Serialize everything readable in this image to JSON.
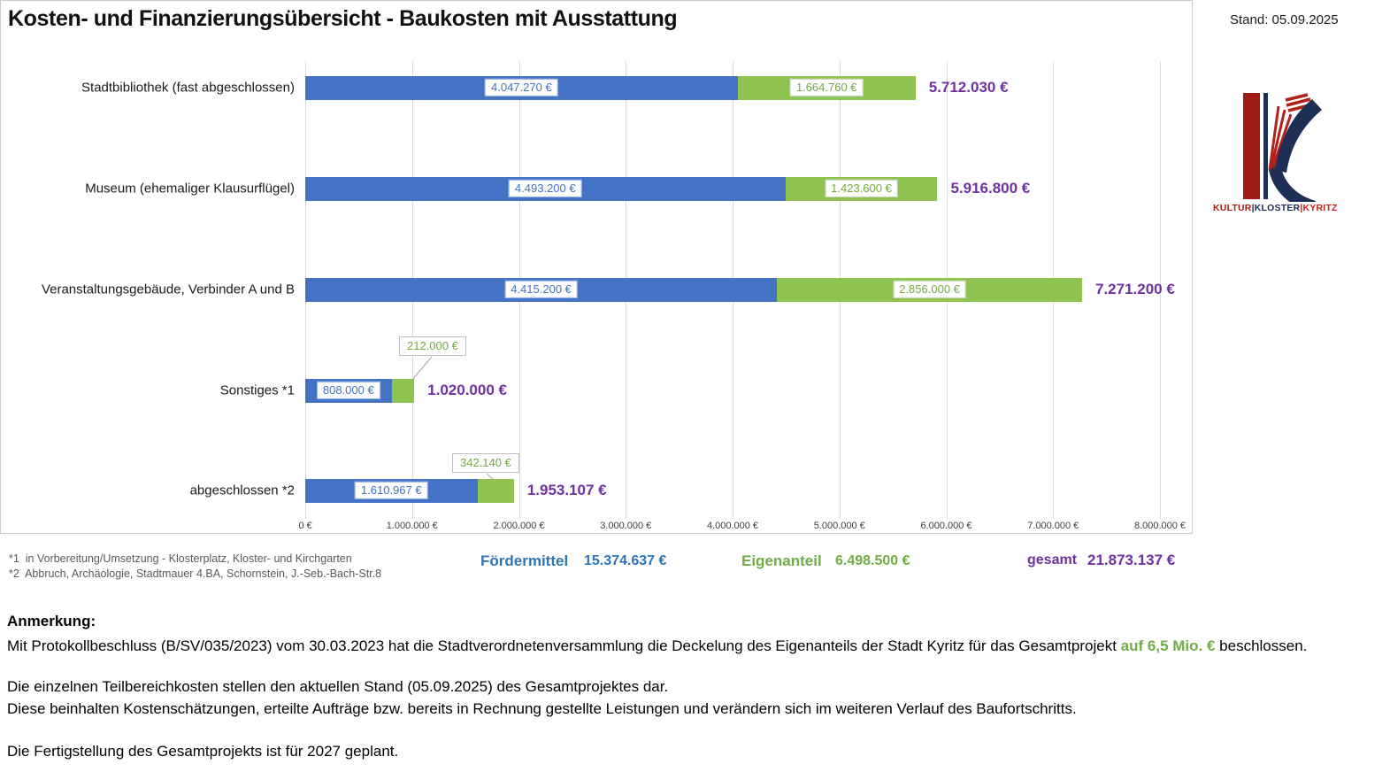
{
  "meta": {
    "stand": "Stand: 05.09.2025"
  },
  "title": "Kosten- und Finanzierungsübersicht - Baukosten mit Ausstattung",
  "chart_data": {
    "type": "bar",
    "orientation": "horizontal",
    "stacked": true,
    "grid": true,
    "categories": [
      "Stadtbibliothek (fast abgeschlossen)",
      "Museum (ehemaliger Klausurflügel)",
      "Veranstaltungsgebäude, Verbinder A und B",
      "Sonstiges *1",
      "abgeschlossen *2"
    ],
    "series": [
      {
        "name": "Fördermittel",
        "color": "#4472c4",
        "values": [
          4047270,
          4493200,
          4415200,
          808000,
          1610967
        ],
        "labels": [
          "4.047.270 €",
          "4.493.200 €",
          "4.415.200 €",
          "808.000 €",
          "1.610.967 €"
        ]
      },
      {
        "name": "Eigenanteil",
        "color": "#8fc350",
        "values": [
          1664760,
          1423600,
          2856000,
          212000,
          342140
        ],
        "labels": [
          "1.664.760 €",
          "1.423.600 €",
          "2.856.000 €",
          "212.000 €",
          "342.140 €"
        ]
      }
    ],
    "totals": {
      "values": [
        5712030,
        5916800,
        7271200,
        1020000,
        1953107
      ],
      "labels": [
        "5.712.030 €",
        "5.916.800 €",
        "7.271.200 €",
        "1.020.000 €",
        "1.953.107 €"
      ]
    },
    "xlim": [
      0,
      8000000
    ],
    "x_ticks": [
      "0 €",
      "1.000.000 €",
      "2.000.000 €",
      "3.000.000 €",
      "4.000.000 €",
      "5.000.000 €",
      "6.000.000 €",
      "7.000.000 €",
      "8.000.000 €"
    ]
  },
  "footnotes": [
    "*1  in Vorbereitung/Umsetzung - Klosterplatz, Kloster- und Kirchgarten",
    "*2  Abbruch, Archäologie, Stadtmauer 4.BA, Schornstein, J.-Seb.-Bach-Str.8"
  ],
  "summary": {
    "foerdermittel_label": "Fördermittel",
    "foerdermittel_value": "15.374.637 €",
    "eigenanteil_label": "Eigenanteil",
    "eigenanteil_value": "6.498.500 €",
    "gesamt_label": "gesamt",
    "gesamt_value": "21.873.137 €"
  },
  "remark": {
    "heading": "Anmerkung:",
    "line1_pre": "Mit Protokollbeschluss (B/SV/035/2023) vom 30.03.2023 hat die Stadtverordnetenversammlung die Deckelung des Eigenanteils der Stadt Kyritz für das Gesamtprojekt ",
    "line1_highlight": "auf 6,5 Mio. €",
    "line1_post": " beschlossen.",
    "line2": "Die einzelnen Teilbereichkosten stellen den aktuellen Stand (05.09.2025) des Gesamtprojektes dar.",
    "line3": "Diese beinhalten Kostenschätzungen, erteilte Aufträge bzw. bereits in Rechnung gestellte Leistungen und verändern sich im weiteren Verlauf des Baufortschritts.",
    "line4": "Die Fertigstellung des Gesamtprojekts ist für 2027 geplant."
  },
  "logo": {
    "word1": "KULTUR",
    "word2": "KLOSTER",
    "word3": "KYRITZ",
    "separator": "|"
  },
  "colors": {
    "bar_blue": "#4472c4",
    "bar_green": "#8fc350",
    "value_label_blue": "#4472c4",
    "value_label_green": "#74a93f",
    "total_purple": "#7030a0",
    "summary_blue": "#2e75b6",
    "summary_green": "#70ad47",
    "logo_red": "#9e1d12",
    "logo_navy": "#1d2f55"
  }
}
